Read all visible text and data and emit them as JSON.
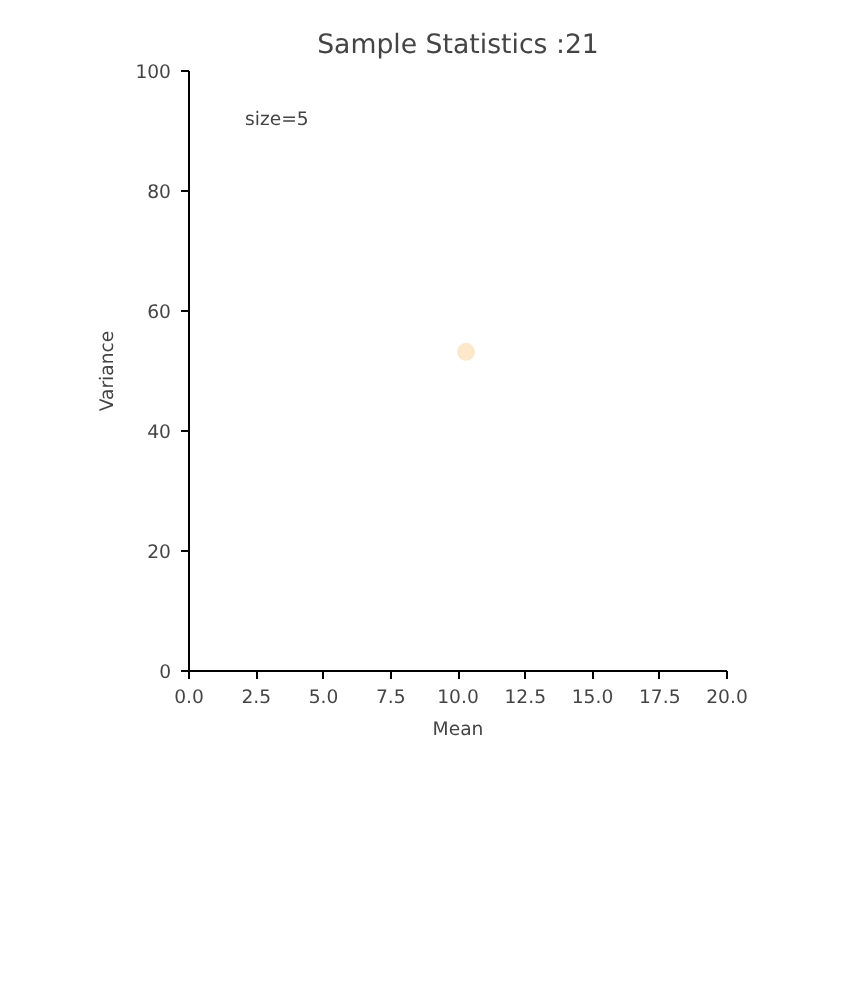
{
  "chart_data": {
    "type": "scatter",
    "title": "Sample Statistics :21",
    "xlabel": "Mean",
    "ylabel": "Variance",
    "x": [
      10.3
    ],
    "values": [
      53.2
    ],
    "color": "#fde8cc",
    "marker": "circle",
    "xlim": [
      0,
      20
    ],
    "ylim": [
      0,
      100
    ],
    "xticks": [
      {
        "value": 0,
        "label": "0.0"
      },
      {
        "value": 2.5,
        "label": "2.5"
      },
      {
        "value": 5,
        "label": "5.0"
      },
      {
        "value": 7.5,
        "label": "7.5"
      },
      {
        "value": 10,
        "label": "10.0"
      },
      {
        "value": 12.5,
        "label": "12.5"
      },
      {
        "value": 15,
        "label": "15.0"
      },
      {
        "value": 17.5,
        "label": "17.5"
      },
      {
        "value": 20,
        "label": "20.0"
      }
    ],
    "yticks": [
      0,
      20,
      40,
      60,
      80,
      100
    ],
    "grid": false,
    "annotations": [
      "size=5"
    ]
  }
}
